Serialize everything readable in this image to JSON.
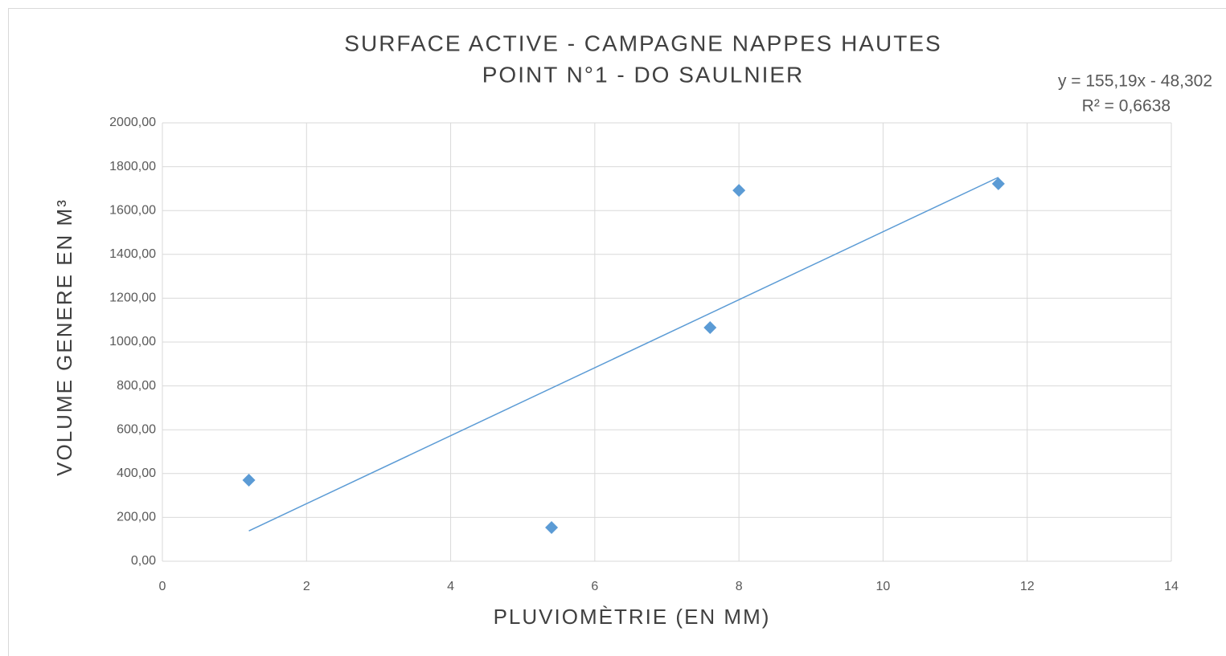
{
  "chart_data": {
    "type": "scatter",
    "title": "SURFACE ACTIVE - CAMPAGNE NAPPES HAUTES",
    "subtitle": "POINT N°1 - DO SAULNIER",
    "x_label": "PLUVIOMÈTRIE (EN MM)",
    "y_label": "VOLUME GENERE EN M³",
    "annotations": [
      "y = 155,19x - 48,302",
      "R² = 0,6638"
    ],
    "trendline": "linear",
    "x": [
      1.2,
      5.4,
      7.6,
      8.0,
      11.6
    ],
    "values": [
      370,
      154,
      1066,
      1692,
      1722
    ],
    "color": "#5b9bd5",
    "xlim": [
      0,
      14
    ],
    "xticks": [
      0,
      2,
      4,
      6,
      8,
      10,
      12,
      14
    ],
    "ylim": [
      0,
      2000
    ],
    "yticks": [
      {
        "value": 0,
        "label": "0,00"
      },
      {
        "value": 200,
        "label": "200,00"
      },
      {
        "value": 400,
        "label": "400,00"
      },
      {
        "value": 600,
        "label": "600,00"
      },
      {
        "value": 800,
        "label": "800,00"
      },
      {
        "value": 1000,
        "label": "1000,00"
      },
      {
        "value": 1200,
        "label": "1200,00"
      },
      {
        "value": 1400,
        "label": "1400,00"
      },
      {
        "value": 1600,
        "label": "1600,00"
      },
      {
        "value": 1800,
        "label": "1800,00"
      },
      {
        "value": 2000,
        "label": "2000,00"
      }
    ],
    "grid": true
  }
}
